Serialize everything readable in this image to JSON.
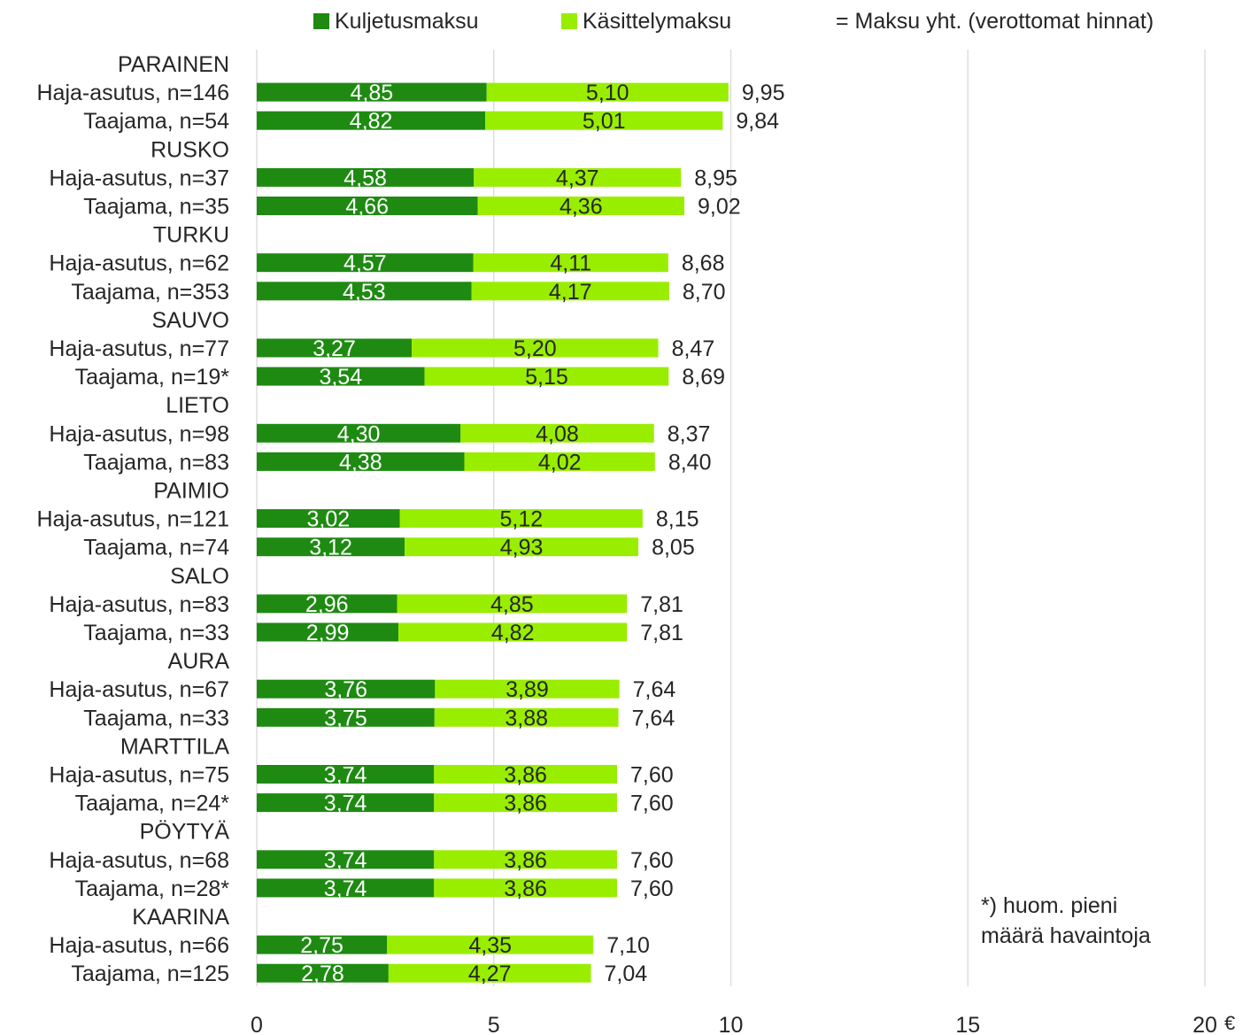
{
  "colors": {
    "kuljetus": "#1e8a12",
    "kasittely": "#99ee00",
    "grid": "#d9d9d9",
    "text": "#262626",
    "inner_label_light": "#ffffff"
  },
  "legend": {
    "kuljetus_label": "Kuljetusmaksu",
    "kasittely_label": "Käsittelymaksu",
    "total_label": "= Maksu yht. (verottomat hinnat)"
  },
  "note": {
    "line1": "*) huom. pieni",
    "line2": "määrä havaintoja"
  },
  "chart_data": {
    "type": "bar",
    "orientation": "horizontal",
    "stacked": true,
    "xlim": [
      0,
      20
    ],
    "xticks": [
      "0",
      "5",
      "10",
      "15",
      "20"
    ],
    "x_unit": "€",
    "grid": true,
    "legend_position": "top",
    "series": [
      {
        "name": "Kuljetusmaksu",
        "key": "kuljetus"
      },
      {
        "name": "Käsittelymaksu",
        "key": "kasittely"
      }
    ],
    "groups": [
      {
        "name": "PARAINEN",
        "rows": [
          {
            "label": "Haja-asutus, n=146",
            "kuljetus": 4.85,
            "kasittely": 5.1,
            "total": 9.95,
            "kuljetus_text": "4,85",
            "kasittely_text": "5,10",
            "total_text": "9,95"
          },
          {
            "label": "Taajama, n=54",
            "kuljetus": 4.82,
            "kasittely": 5.01,
            "total": 9.84,
            "kuljetus_text": "4,82",
            "kasittely_text": "5,01",
            "total_text": "9,84"
          }
        ]
      },
      {
        "name": "RUSKO",
        "rows": [
          {
            "label": "Haja-asutus, n=37",
            "kuljetus": 4.58,
            "kasittely": 4.37,
            "total": 8.95,
            "kuljetus_text": "4,58",
            "kasittely_text": "4,37",
            "total_text": "8,95"
          },
          {
            "label": "Taajama, n=35",
            "kuljetus": 4.66,
            "kasittely": 4.36,
            "total": 9.02,
            "kuljetus_text": "4,66",
            "kasittely_text": "4,36",
            "total_text": "9,02"
          }
        ]
      },
      {
        "name": "TURKU",
        "rows": [
          {
            "label": "Haja-asutus, n=62",
            "kuljetus": 4.57,
            "kasittely": 4.11,
            "total": 8.68,
            "kuljetus_text": "4,57",
            "kasittely_text": "4,11",
            "total_text": "8,68"
          },
          {
            "label": "Taajama, n=353",
            "kuljetus": 4.53,
            "kasittely": 4.17,
            "total": 8.7,
            "kuljetus_text": "4,53",
            "kasittely_text": "4,17",
            "total_text": "8,70"
          }
        ]
      },
      {
        "name": "SAUVO",
        "rows": [
          {
            "label": "Haja-asutus, n=77",
            "kuljetus": 3.27,
            "kasittely": 5.2,
            "total": 8.47,
            "kuljetus_text": "3,27",
            "kasittely_text": "5,20",
            "total_text": "8,47"
          },
          {
            "label": "Taajama, n=19*",
            "kuljetus": 3.54,
            "kasittely": 5.15,
            "total": 8.69,
            "kuljetus_text": "3,54",
            "kasittely_text": "5,15",
            "total_text": "8,69"
          }
        ]
      },
      {
        "name": "LIETO",
        "rows": [
          {
            "label": "Haja-asutus, n=98",
            "kuljetus": 4.3,
            "kasittely": 4.08,
            "total": 8.37,
            "kuljetus_text": "4,30",
            "kasittely_text": "4,08",
            "total_text": "8,37"
          },
          {
            "label": "Taajama, n=83",
            "kuljetus": 4.38,
            "kasittely": 4.02,
            "total": 8.4,
            "kuljetus_text": "4,38",
            "kasittely_text": "4,02",
            "total_text": "8,40"
          }
        ]
      },
      {
        "name": "PAIMIO",
        "rows": [
          {
            "label": "Haja-asutus, n=121",
            "kuljetus": 3.02,
            "kasittely": 5.12,
            "total": 8.15,
            "kuljetus_text": "3,02",
            "kasittely_text": "5,12",
            "total_text": "8,15"
          },
          {
            "label": "Taajama, n=74",
            "kuljetus": 3.12,
            "kasittely": 4.93,
            "total": 8.05,
            "kuljetus_text": "3,12",
            "kasittely_text": "4,93",
            "total_text": "8,05"
          }
        ]
      },
      {
        "name": "SALO",
        "rows": [
          {
            "label": "Haja-asutus, n=83",
            "kuljetus": 2.96,
            "kasittely": 4.85,
            "total": 7.81,
            "kuljetus_text": "2,96",
            "kasittely_text": "4,85",
            "total_text": "7,81"
          },
          {
            "label": "Taajama, n=33",
            "kuljetus": 2.99,
            "kasittely": 4.82,
            "total": 7.81,
            "kuljetus_text": "2,99",
            "kasittely_text": "4,82",
            "total_text": "7,81"
          }
        ]
      },
      {
        "name": "AURA",
        "rows": [
          {
            "label": "Haja-asutus, n=67",
            "kuljetus": 3.76,
            "kasittely": 3.89,
            "total": 7.64,
            "kuljetus_text": "3,76",
            "kasittely_text": "3,89",
            "total_text": "7,64"
          },
          {
            "label": "Taajama, n=33",
            "kuljetus": 3.75,
            "kasittely": 3.88,
            "total": 7.64,
            "kuljetus_text": "3,75",
            "kasittely_text": "3,88",
            "total_text": "7,64"
          }
        ]
      },
      {
        "name": "MARTTILA",
        "rows": [
          {
            "label": "Haja-asutus, n=75",
            "kuljetus": 3.74,
            "kasittely": 3.86,
            "total": 7.6,
            "kuljetus_text": "3,74",
            "kasittely_text": "3,86",
            "total_text": "7,60"
          },
          {
            "label": "Taajama, n=24*",
            "kuljetus": 3.74,
            "kasittely": 3.86,
            "total": 7.6,
            "kuljetus_text": "3,74",
            "kasittely_text": "3,86",
            "total_text": "7,60"
          }
        ]
      },
      {
        "name": "PÖYTYÄ",
        "rows": [
          {
            "label": "Haja-asutus, n=68",
            "kuljetus": 3.74,
            "kasittely": 3.86,
            "total": 7.6,
            "kuljetus_text": "3,74",
            "kasittely_text": "3,86",
            "total_text": "7,60"
          },
          {
            "label": "Taajama, n=28*",
            "kuljetus": 3.74,
            "kasittely": 3.86,
            "total": 7.6,
            "kuljetus_text": "3,74",
            "kasittely_text": "3,86",
            "total_text": "7,60"
          }
        ]
      },
      {
        "name": "KAARINA",
        "rows": [
          {
            "label": "Haja-asutus, n=66",
            "kuljetus": 2.75,
            "kasittely": 4.35,
            "total": 7.1,
            "kuljetus_text": "2,75",
            "kasittely_text": "4,35",
            "total_text": "7,10"
          },
          {
            "label": "Taajama, n=125",
            "kuljetus": 2.78,
            "kasittely": 4.27,
            "total": 7.04,
            "kuljetus_text": "2,78",
            "kasittely_text": "4,27",
            "total_text": "7,04"
          }
        ]
      }
    ]
  }
}
